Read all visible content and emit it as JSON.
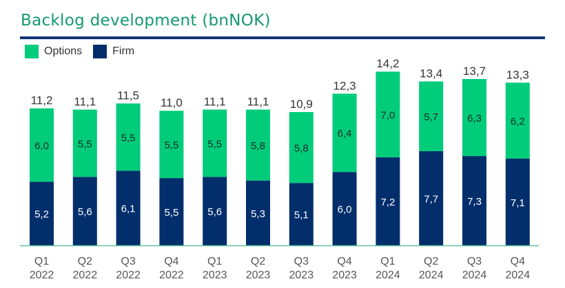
{
  "chart_data": {
    "type": "bar",
    "stacked": true,
    "title": "Backlog development (bnNOK)",
    "xlabel": "",
    "ylabel": "",
    "ylim": [
      0,
      15
    ],
    "grid": false,
    "legend_position": "top-left",
    "categories": [
      [
        "Q1",
        "2022"
      ],
      [
        "Q2",
        "2022"
      ],
      [
        "Q3",
        "2022"
      ],
      [
        "Q4",
        "2022"
      ],
      [
        "Q1",
        "2023"
      ],
      [
        "Q2",
        "2023"
      ],
      [
        "Q3",
        "2023"
      ],
      [
        "Q4",
        "2023"
      ],
      [
        "Q1",
        "2024"
      ],
      [
        "Q2",
        "2024"
      ],
      [
        "Q3",
        "2024"
      ],
      [
        "Q4",
        "2024"
      ]
    ],
    "series": [
      {
        "name": "Firm",
        "color": "#022f6b",
        "values": [
          5.2,
          5.6,
          6.1,
          5.5,
          5.6,
          5.3,
          5.1,
          6.0,
          7.2,
          7.7,
          7.3,
          7.1
        ],
        "labels": [
          "5,2",
          "5,6",
          "6,1",
          "5,5",
          "5,6",
          "5,3",
          "5,1",
          "6,0",
          "7,2",
          "7,7",
          "7,3",
          "7,1"
        ]
      },
      {
        "name": "Options",
        "color": "#00cc7a",
        "values": [
          6.0,
          5.5,
          5.5,
          5.5,
          5.5,
          5.8,
          5.8,
          6.4,
          7.0,
          5.7,
          6.3,
          6.2
        ],
        "labels": [
          "6,0",
          "5,5",
          "5,5",
          "5,5",
          "5,5",
          "5,8",
          "5,8",
          "6,4",
          "7,0",
          "5,7",
          "6,3",
          "6,2"
        ]
      }
    ],
    "totals": [
      11.2,
      11.1,
      11.5,
      11.0,
      11.1,
      11.1,
      10.9,
      12.3,
      14.2,
      13.4,
      13.7,
      13.3
    ],
    "total_labels": [
      "11,2",
      "11,1",
      "11,5",
      "11,0",
      "11,1",
      "11,1",
      "10,9",
      "12,3",
      "14,2",
      "13,4",
      "13,7",
      "13,3"
    ],
    "legend": [
      {
        "name": "Options",
        "color": "#00cc7a"
      },
      {
        "name": "Firm",
        "color": "#022f6b"
      }
    ]
  }
}
